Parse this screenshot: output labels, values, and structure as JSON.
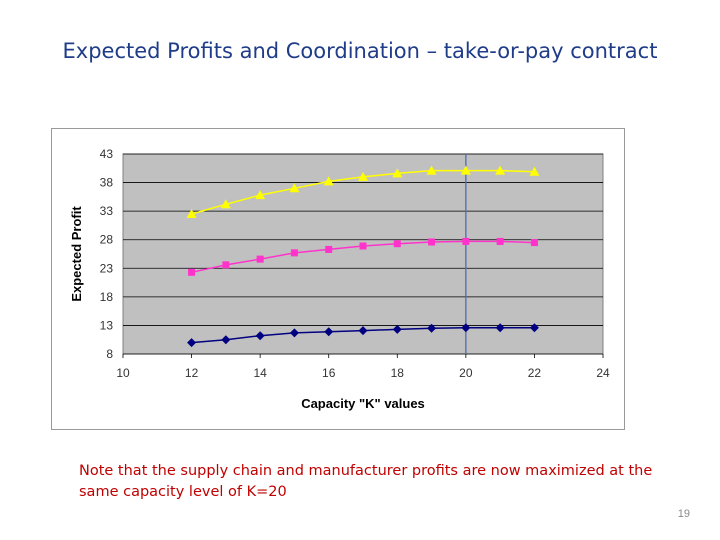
{
  "slide": {
    "title": "Expected Profits and Coordination – take-or-pay contract",
    "note": "Note that the supply chain and manufacturer profits are now maximized at the same capacity level of K=20",
    "page_number": "19"
  },
  "chart_data": {
    "type": "line",
    "title": "",
    "xlabel": "Capacity \"K\" values",
    "ylabel": "Expected Profit",
    "xlim": [
      10,
      24
    ],
    "ylim": [
      8,
      43
    ],
    "x_ticks": [
      10,
      12,
      14,
      16,
      18,
      20,
      22,
      24
    ],
    "y_ticks": [
      8,
      13,
      18,
      23,
      28,
      33,
      38,
      43
    ],
    "grid": "horizontal",
    "plot_background": "#c0c0c0",
    "reference_line": {
      "x": 20,
      "color": "#4a6fb5"
    },
    "x": [
      12,
      13,
      14,
      15,
      16,
      17,
      18,
      19,
      20,
      21,
      22
    ],
    "series": [
      {
        "marker": "triangle",
        "color": "#ffff00",
        "values": [
          32.5,
          34.2,
          35.8,
          37.0,
          38.2,
          39.0,
          39.6,
          40.1,
          40.1,
          40.1,
          39.9
        ]
      },
      {
        "marker": "square",
        "color": "#ff33cc",
        "values": [
          22.3,
          23.6,
          24.6,
          25.7,
          26.3,
          26.9,
          27.3,
          27.6,
          27.7,
          27.7,
          27.5
        ]
      },
      {
        "marker": "diamond",
        "color": "#000080",
        "values": [
          10.0,
          10.5,
          11.2,
          11.7,
          11.9,
          12.1,
          12.3,
          12.5,
          12.6,
          12.6,
          12.6
        ]
      }
    ]
  }
}
